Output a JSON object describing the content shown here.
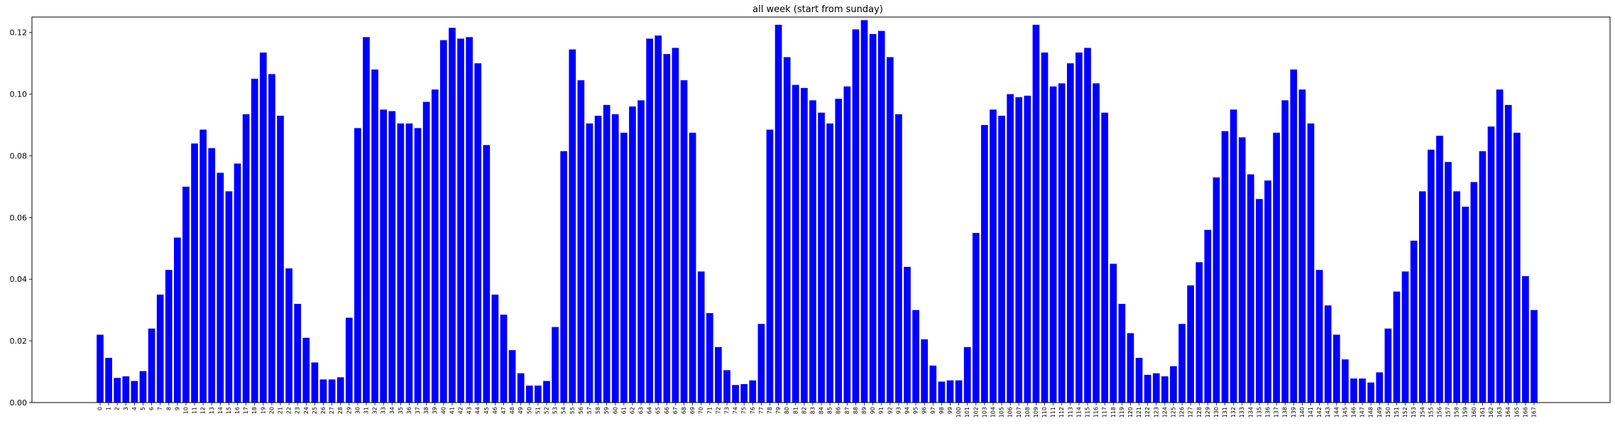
{
  "chart_data": {
    "type": "bar",
    "title": "all week (start from sunday)",
    "xlabel": "",
    "ylabel": "",
    "bar_color": "#0000ff",
    "ylim": [
      0,
      0.125
    ],
    "yticks": [
      "0.00",
      "0.02",
      "0.04",
      "0.06",
      "0.08",
      "0.10",
      "0.12"
    ],
    "grid": false,
    "categories": [
      "0",
      "1",
      "2",
      "3",
      "4",
      "5",
      "6",
      "7",
      "8",
      "9",
      "10",
      "11",
      "12",
      "13",
      "14",
      "15",
      "16",
      "17",
      "18",
      "19",
      "20",
      "21",
      "22",
      "23",
      "24",
      "25",
      "26",
      "27",
      "28",
      "29",
      "30",
      "31",
      "32",
      "33",
      "34",
      "35",
      "36",
      "37",
      "38",
      "39",
      "40",
      "41",
      "42",
      "43",
      "44",
      "45",
      "46",
      "47",
      "48",
      "49",
      "50",
      "51",
      "52",
      "53",
      "54",
      "55",
      "56",
      "57",
      "58",
      "59",
      "60",
      "61",
      "62",
      "63",
      "64",
      "65",
      "66",
      "67",
      "68",
      "69",
      "70",
      "71",
      "72",
      "73",
      "74",
      "75",
      "76",
      "77",
      "78",
      "79",
      "80",
      "81",
      "82",
      "83",
      "84",
      "85",
      "86",
      "87",
      "88",
      "89",
      "90",
      "91",
      "92",
      "93",
      "94",
      "95",
      "96",
      "97",
      "98",
      "99",
      "100",
      "101",
      "102",
      "103",
      "104",
      "105",
      "106",
      "107",
      "108",
      "109",
      "110",
      "111",
      "112",
      "113",
      "114",
      "115",
      "116",
      "117",
      "118",
      "119",
      "120",
      "121",
      "122",
      "123",
      "124",
      "125",
      "126",
      "127",
      "128",
      "129",
      "130",
      "131",
      "132",
      "133",
      "134",
      "135",
      "136",
      "137",
      "138",
      "139",
      "140",
      "141",
      "142",
      "143",
      "144",
      "145",
      "146",
      "147",
      "148",
      "149",
      "150",
      "151",
      "152",
      "153",
      "154",
      "155",
      "156",
      "157",
      "158",
      "159",
      "160",
      "161",
      "162",
      "163",
      "164",
      "165",
      "166",
      "167"
    ],
    "values": [
      0.022,
      0.0145,
      0.008,
      0.0085,
      0.007,
      0.0102,
      0.024,
      0.035,
      0.043,
      0.0535,
      0.07,
      0.084,
      0.0885,
      0.0825,
      0.0745,
      0.0685,
      0.0775,
      0.0935,
      0.105,
      0.1135,
      0.1065,
      0.093,
      0.0435,
      0.032,
      0.021,
      0.013,
      0.0075,
      0.0075,
      0.0082,
      0.0275,
      0.089,
      0.1185,
      0.108,
      0.095,
      0.0945,
      0.0905,
      0.0905,
      0.089,
      0.0975,
      0.1015,
      0.1175,
      0.1215,
      0.118,
      0.1185,
      0.11,
      0.0835,
      0.035,
      0.0285,
      0.017,
      0.0095,
      0.0055,
      0.0055,
      0.007,
      0.0245,
      0.0815,
      0.1145,
      0.1045,
      0.0905,
      0.093,
      0.0965,
      0.0935,
      0.0875,
      0.096,
      0.098,
      0.118,
      0.119,
      0.113,
      0.115,
      0.1045,
      0.0875,
      0.0425,
      0.029,
      0.018,
      0.0105,
      0.0057,
      0.006,
      0.0072,
      0.0255,
      0.0885,
      0.1225,
      0.112,
      0.103,
      0.102,
      0.098,
      0.094,
      0.0905,
      0.0985,
      0.1025,
      0.121,
      0.124,
      0.1195,
      0.1205,
      0.112,
      0.0935,
      0.044,
      0.03,
      0.0205,
      0.012,
      0.0068,
      0.0072,
      0.0072,
      0.018,
      0.055,
      0.09,
      0.095,
      0.093,
      0.1,
      0.099,
      0.0995,
      0.1225,
      0.1135,
      0.1025,
      0.1035,
      0.11,
      0.1135,
      0.115,
      0.1035,
      0.094,
      0.045,
      0.032,
      0.0225,
      0.0145,
      0.009,
      0.0095,
      0.0085,
      0.0118,
      0.0255,
      0.038,
      0.0455,
      0.056,
      0.073,
      0.088,
      0.095,
      0.086,
      0.074,
      0.066,
      0.072,
      0.0875,
      0.098,
      0.108,
      0.1015,
      0.0905,
      0.043,
      0.0315,
      0.022,
      0.014,
      0.0078,
      0.0078,
      0.0065,
      0.0098,
      0.024,
      0.036,
      0.0425,
      0.0525,
      0.0685,
      0.082,
      0.0865,
      0.078,
      0.0685,
      0.0635,
      0.0715,
      0.0815,
      0.0895,
      0.1015,
      0.0965,
      0.0875,
      0.041,
      0.03
    ]
  }
}
